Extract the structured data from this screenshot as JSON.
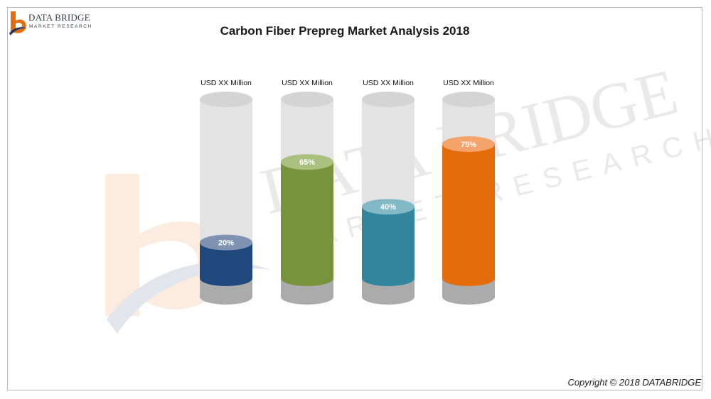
{
  "header": {
    "logo_line1": "DATA BRIDGE",
    "logo_line2": "MARKET RESEARCH",
    "title": "Carbon Fiber Prepreg Market Analysis 2018"
  },
  "watermark": {
    "line1": "DATA BRIDGE",
    "line2": "MARKET RESEARCH"
  },
  "footer": {
    "copyright": "Copyright © 2018 DATABRIDGE"
  },
  "chart_data": {
    "type": "bar",
    "style": "cylinder",
    "categories": [
      "",
      "",
      "",
      ""
    ],
    "values": [
      20,
      65,
      40,
      75
    ],
    "value_labels": [
      "20%",
      "65%",
      "40%",
      "75%"
    ],
    "top_labels": [
      "USD XX Million",
      "USD XX Million",
      "USD XX Million",
      "USD XX Million"
    ],
    "colors": [
      "#1f497d",
      "#77933c",
      "#31859c",
      "#e46c0a"
    ],
    "cap_colors": [
      "#7f92b2",
      "#a9c07f",
      "#83b9c7",
      "#f4a36a"
    ],
    "ylim": [
      0,
      100
    ],
    "grid": false,
    "legend": "none"
  }
}
